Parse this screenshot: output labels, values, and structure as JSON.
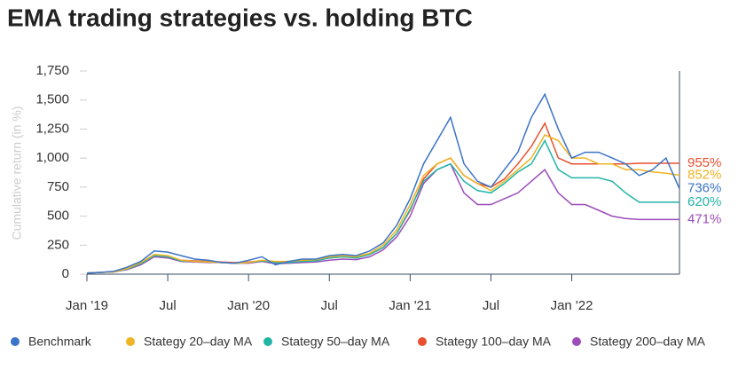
{
  "chart_data": {
    "type": "line",
    "title": "EMA trading strategies vs. holding BTC",
    "y_label": "Cumulative return (in %)",
    "x": [
      "2019-01",
      "2019-02",
      "2019-03",
      "2019-04",
      "2019-05",
      "2019-06",
      "2019-07",
      "2019-08",
      "2019-09",
      "2019-10",
      "2019-11",
      "2019-12",
      "2020-01",
      "2020-02",
      "2020-03",
      "2020-04",
      "2020-05",
      "2020-06",
      "2020-07",
      "2020-08",
      "2020-09",
      "2020-10",
      "2020-11",
      "2020-12",
      "2021-01",
      "2021-02",
      "2021-03",
      "2021-04",
      "2021-05",
      "2021-06",
      "2021-07",
      "2021-08",
      "2021-09",
      "2021-10",
      "2021-11",
      "2021-12",
      "2022-01",
      "2022-02",
      "2022-03",
      "2022-04",
      "2022-05",
      "2022-06",
      "2022-07",
      "2022-08",
      "2022-09"
    ],
    "xlim": [
      "2019-01",
      "2022-09"
    ],
    "xticks": [
      {
        "value": "2019-01",
        "label": "Jan '19"
      },
      {
        "value": "2019-07",
        "label": "Jul"
      },
      {
        "value": "2020-01",
        "label": "Jan '20"
      },
      {
        "value": "2020-07",
        "label": "Jul"
      },
      {
        "value": "2021-01",
        "label": "Jan '21"
      },
      {
        "value": "2021-07",
        "label": "Jul"
      },
      {
        "value": "2022-01",
        "label": "Jan '22"
      }
    ],
    "ylim": [
      0,
      1750
    ],
    "yticks": [
      0,
      {
        "value": 250,
        "label": "250"
      },
      {
        "value": 500,
        "label": "500"
      },
      {
        "value": 750,
        "label": "750"
      },
      {
        "value": 1000,
        "label": "1,000"
      },
      {
        "value": 1250,
        "label": "1,250"
      },
      {
        "value": 1500,
        "label": "1,500"
      },
      {
        "value": 1750,
        "label": "1,750"
      }
    ],
    "grid": false,
    "series": [
      {
        "name": "Benchmark",
        "color": "#3b74c6",
        "last_label": "736%",
        "values": [
          10,
          15,
          25,
          60,
          110,
          200,
          190,
          160,
          130,
          120,
          100,
          95,
          120,
          150,
          80,
          110,
          130,
          130,
          160,
          170,
          160,
          200,
          270,
          420,
          650,
          950,
          1150,
          1350,
          950,
          800,
          750,
          900,
          1050,
          1350,
          1550,
          1250,
          1000,
          1050,
          1050,
          1000,
          950,
          850,
          900,
          1000,
          736
        ]
      },
      {
        "name": "Stategy 20–day MA",
        "color": "#f0b323",
        "last_label": "852%",
        "values": [
          10,
          15,
          20,
          50,
          100,
          170,
          160,
          120,
          110,
          105,
          100,
          95,
          100,
          120,
          110,
          110,
          120,
          125,
          150,
          160,
          150,
          180,
          250,
          380,
          600,
          850,
          950,
          1000,
          850,
          780,
          720,
          800,
          900,
          1000,
          1200,
          1150,
          1000,
          1000,
          950,
          950,
          900,
          900,
          880,
          870,
          852
        ]
      },
      {
        "name": "Stategy 50–day MA",
        "color": "#22b5a5",
        "last_label": "620%",
        "values": [
          10,
          15,
          20,
          45,
          90,
          160,
          150,
          115,
          110,
          105,
          100,
          95,
          100,
          115,
          100,
          100,
          110,
          115,
          140,
          150,
          140,
          170,
          230,
          350,
          560,
          800,
          900,
          950,
          800,
          720,
          700,
          780,
          880,
          950,
          1150,
          900,
          830,
          830,
          830,
          800,
          700,
          620,
          620,
          620,
          620
        ]
      },
      {
        "name": "Stategy 100–day MA",
        "color": "#e8502f",
        "last_label": "955%",
        "values": [
          10,
          15,
          20,
          45,
          90,
          160,
          150,
          120,
          115,
          110,
          105,
          100,
          105,
          115,
          105,
          105,
          115,
          120,
          140,
          150,
          145,
          170,
          230,
          350,
          550,
          820,
          950,
          1000,
          850,
          780,
          750,
          820,
          950,
          1100,
          1300,
          1000,
          950,
          950,
          950,
          950,
          950,
          955,
          955,
          955,
          955
        ]
      },
      {
        "name": "Stategy 200–day MA",
        "color": "#9c4dba",
        "last_label": "471%",
        "values": [
          10,
          15,
          20,
          40,
          80,
          150,
          140,
          110,
          105,
          100,
          100,
          95,
          95,
          110,
          90,
          95,
          100,
          105,
          120,
          130,
          125,
          150,
          210,
          320,
          500,
          780,
          900,
          950,
          700,
          600,
          600,
          650,
          700,
          800,
          900,
          700,
          600,
          600,
          550,
          500,
          480,
          471,
          471,
          471,
          471
        ]
      }
    ]
  }
}
